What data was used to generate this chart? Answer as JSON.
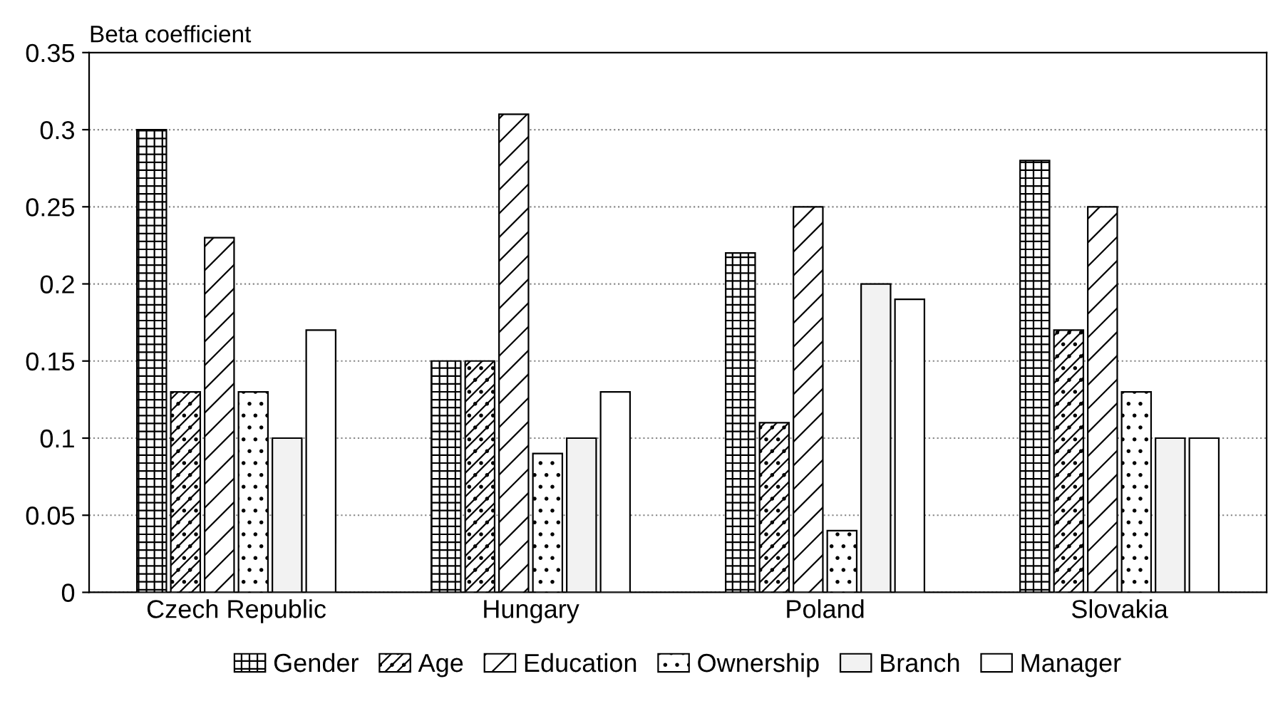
{
  "chart_data": {
    "type": "bar",
    "ylabel": "Beta coefficient",
    "categories": [
      "Czech Republic",
      "Hungary",
      "Poland",
      "Slovakia"
    ],
    "series": [
      {
        "name": "Gender",
        "color": "#000000",
        "values": [
          0.3,
          0.15,
          0.22,
          0.28
        ]
      },
      {
        "name": "Age",
        "color": "#000000",
        "values": [
          0.13,
          0.15,
          0.11,
          0.17
        ]
      },
      {
        "name": "Education",
        "color": "#000000",
        "values": [
          0.23,
          0.31,
          0.25,
          0.25
        ]
      },
      {
        "name": "Ownership",
        "color": "#000000",
        "values": [
          0.13,
          0.09,
          0.04,
          0.13
        ]
      },
      {
        "name": "Branch",
        "color": "#f2f2f2",
        "values": [
          0.1,
          0.1,
          0.2,
          0.1
        ]
      },
      {
        "name": "Manager",
        "color": "#ffffff",
        "values": [
          0.17,
          0.13,
          0.19,
          0.1
        ]
      }
    ],
    "ylim": [
      0,
      0.35
    ],
    "yticks": [
      0,
      {
        "value": 0.05,
        "label": "0.05"
      },
      {
        "value": 0.1,
        "label": "0.1"
      },
      {
        "value": 0.15,
        "label": "0.15"
      },
      {
        "value": 0.2,
        "label": "0.2"
      },
      {
        "value": 0.25,
        "label": "0.25"
      },
      {
        "value": 0.3,
        "label": "0.3"
      },
      {
        "value": 0.35,
        "label": "0.35"
      }
    ],
    "grid": "y",
    "legend": "bottom"
  }
}
